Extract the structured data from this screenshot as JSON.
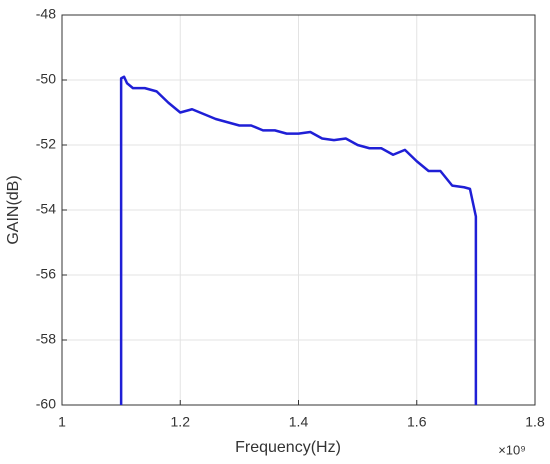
{
  "chart_data": {
    "type": "line",
    "x_label": "Frequency(Hz)",
    "y_label": "GAIN(dB)",
    "x_multiplier": "×10⁹",
    "x": [
      1.1,
      1.1,
      1.105,
      1.11,
      1.12,
      1.14,
      1.16,
      1.18,
      1.2,
      1.22,
      1.24,
      1.26,
      1.28,
      1.3,
      1.32,
      1.34,
      1.36,
      1.38,
      1.4,
      1.42,
      1.44,
      1.46,
      1.48,
      1.5,
      1.52,
      1.54,
      1.56,
      1.58,
      1.6,
      1.62,
      1.64,
      1.66,
      1.68,
      1.69,
      1.7,
      1.7
    ],
    "series": [
      {
        "color": "#1f1fd6",
        "values": [
          -60,
          -49.95,
          -49.9,
          -50.1,
          -50.25,
          -50.25,
          -50.35,
          -50.7,
          -51.0,
          -50.9,
          -51.05,
          -51.2,
          -51.3,
          -51.4,
          -51.4,
          -51.55,
          -51.55,
          -51.65,
          -51.65,
          -51.6,
          -51.8,
          -51.85,
          -51.8,
          -52.0,
          -52.1,
          -52.1,
          -52.3,
          -52.15,
          -52.5,
          -52.8,
          -52.8,
          -53.25,
          -53.3,
          -53.35,
          -54.2,
          -60
        ]
      }
    ],
    "xlim": [
      1,
      1.8
    ],
    "xticks": [
      1,
      1.2,
      1.4,
      1.6,
      1.8
    ],
    "ylim": [
      -60,
      -48
    ],
    "yticks": [
      -60,
      -58,
      -56,
      -54,
      -52,
      -50,
      -48
    ],
    "grid": true
  }
}
